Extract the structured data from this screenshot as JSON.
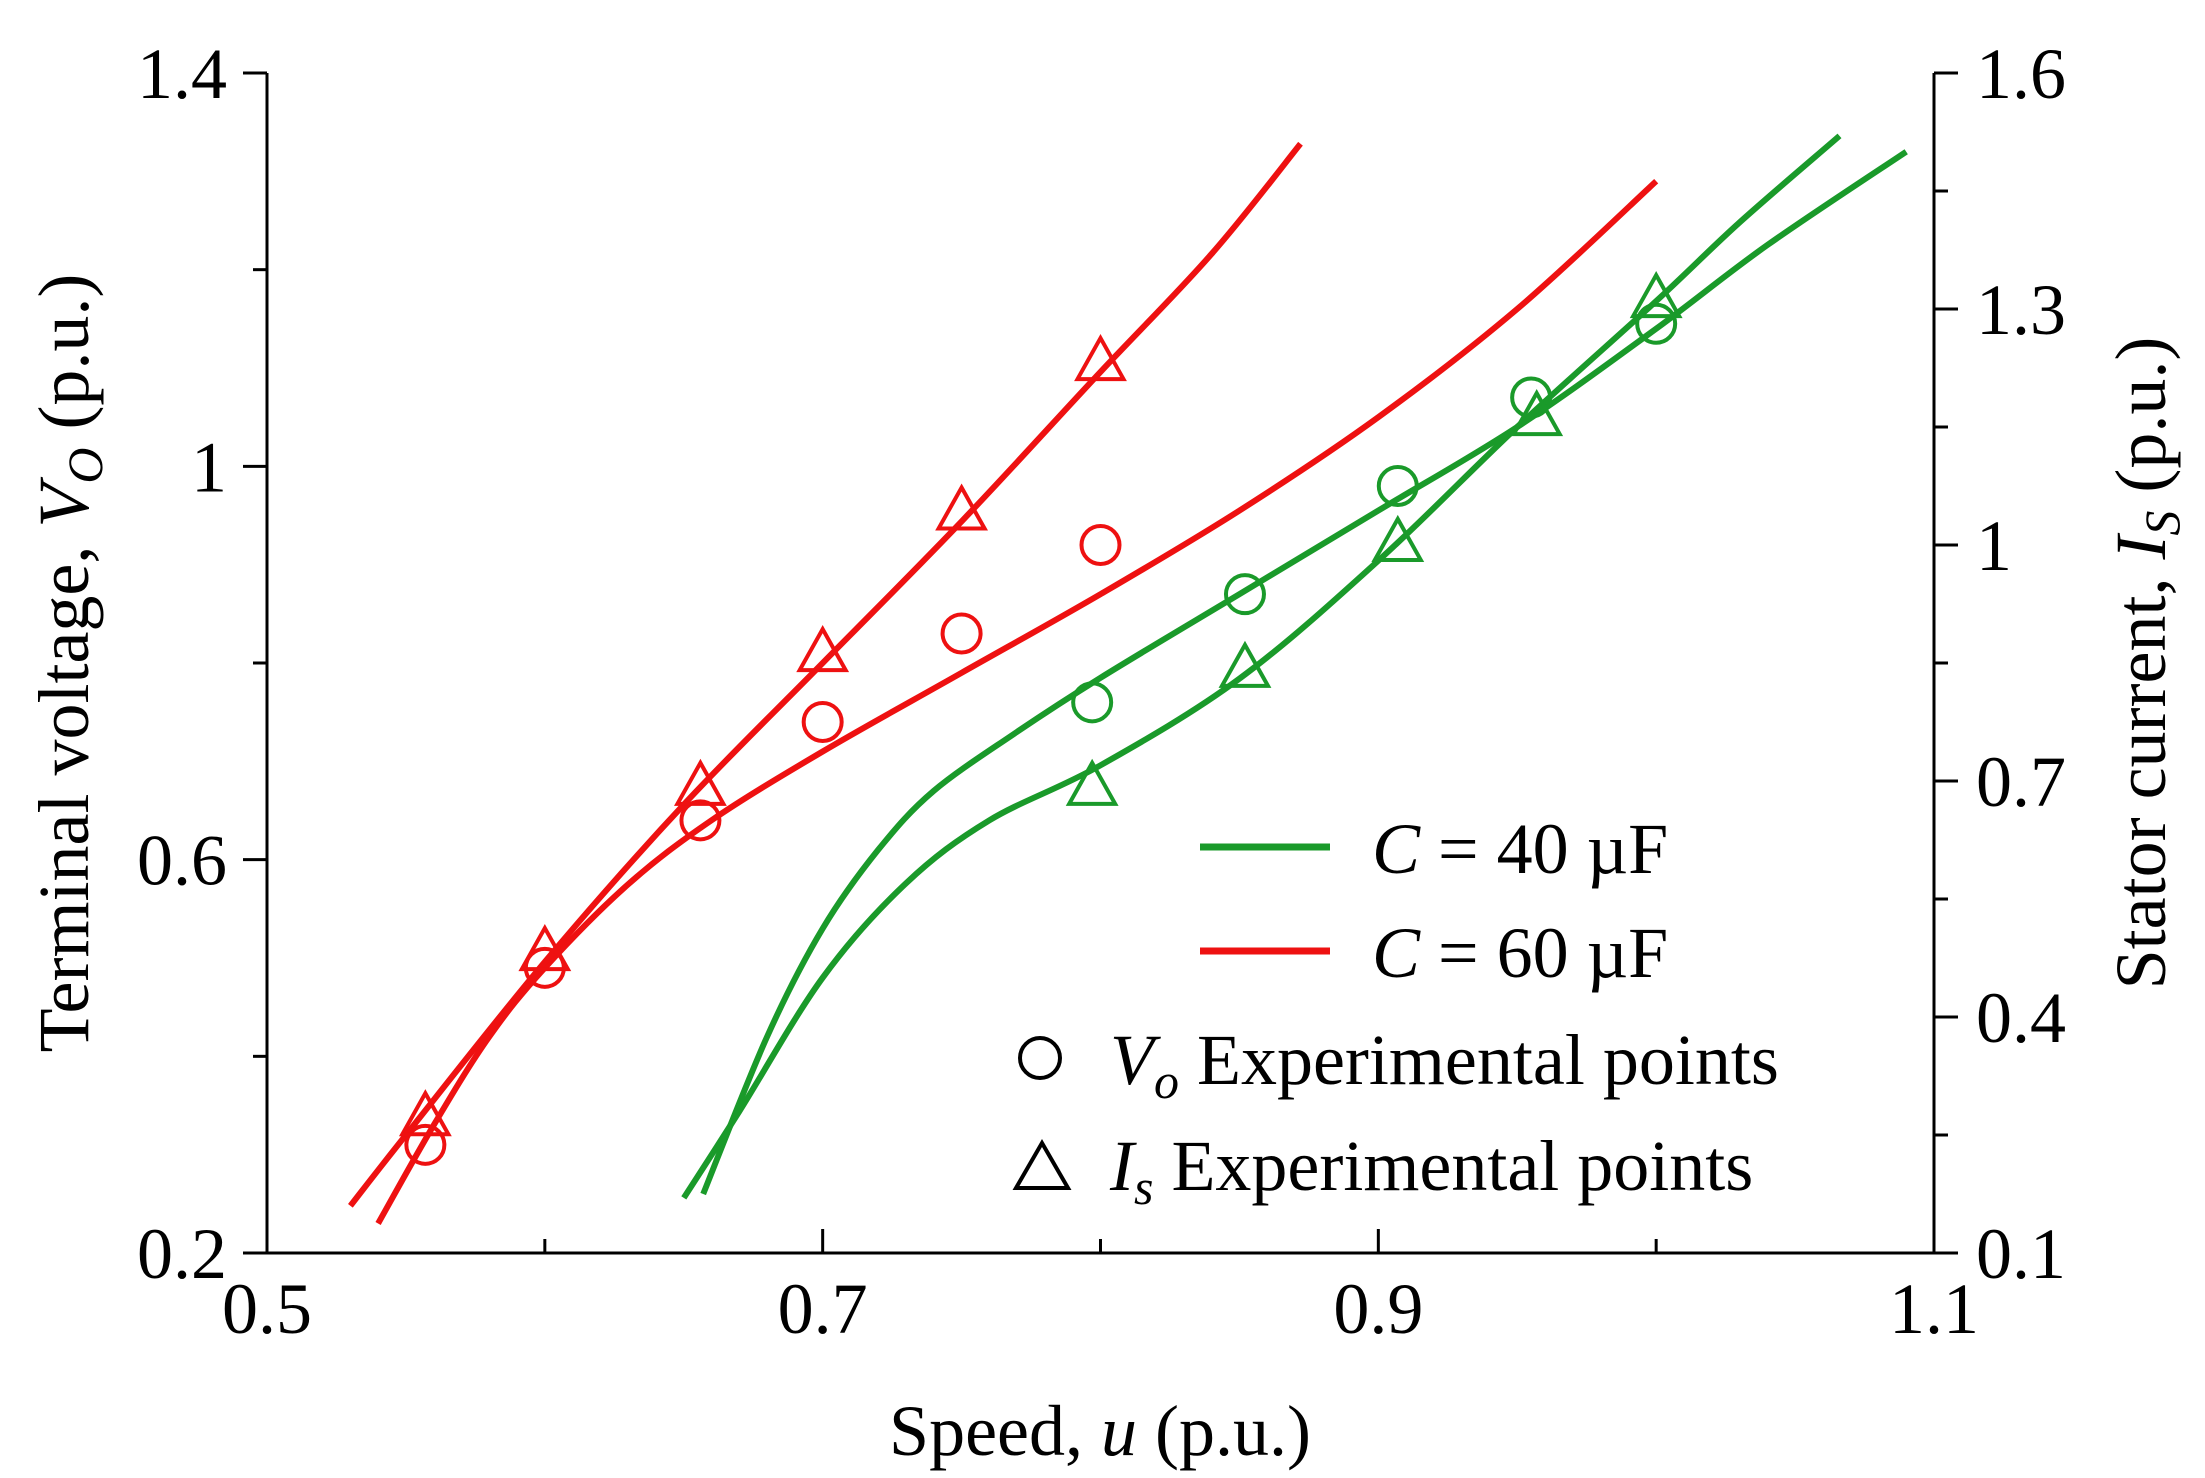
{
  "chart_data": {
    "type": "line",
    "title": "",
    "xlabel": {
      "prefix": "Speed, ",
      "var": "u",
      "suffix": " (p.u.)"
    },
    "ylabel_left": {
      "prefix": "Terminal voltage, ",
      "var": "V",
      "sub": "O",
      "suffix": " (p.u.)"
    },
    "ylabel_right": {
      "prefix": "Stator current, ",
      "var": "I",
      "sub": "S",
      "suffix": " (p.u.)"
    },
    "xlim": [
      0.5,
      1.1
    ],
    "ylim_left": [
      0.2,
      1.4
    ],
    "ylim_right": [
      0.1,
      1.6
    ],
    "x_ticks": [
      "0.5",
      "0.7",
      "0.9",
      "1.1"
    ],
    "y_left_ticks": [
      "0.2",
      "0.6",
      "1",
      "1.4"
    ],
    "y_right_ticks": [
      "0.1",
      "0.4",
      "0.7",
      "1",
      "1.3",
      "1.6"
    ],
    "colors": {
      "c40": "#1a9a2a",
      "c60": "#ee1111"
    },
    "series": [
      {
        "name": "Vo, C = 40 µF (fit)",
        "color": "c40",
        "axis": "left",
        "kind": "line",
        "points": [
          [
            0.657,
            0.26
          ],
          [
            0.68,
            0.42
          ],
          [
            0.7,
            0.53
          ],
          [
            0.72,
            0.61
          ],
          [
            0.74,
            0.67
          ],
          [
            0.77,
            0.73
          ],
          [
            0.8,
            0.785
          ],
          [
            0.85,
            0.87
          ],
          [
            0.9,
            0.955
          ],
          [
            0.95,
            1.04
          ],
          [
            1.0,
            1.14
          ],
          [
            1.04,
            1.225
          ],
          [
            1.09,
            1.32
          ]
        ]
      },
      {
        "name": "Is, C = 40 µF (fit)",
        "color": "c40",
        "axis": "right",
        "kind": "line",
        "points": [
          [
            0.65,
            0.17
          ],
          [
            0.67,
            0.28
          ],
          [
            0.7,
            0.45
          ],
          [
            0.73,
            0.57
          ],
          [
            0.76,
            0.65
          ],
          [
            0.8,
            0.72
          ],
          [
            0.85,
            0.83
          ],
          [
            0.9,
            0.98
          ],
          [
            0.95,
            1.15
          ],
          [
            1.0,
            1.31
          ],
          [
            1.03,
            1.41
          ],
          [
            1.066,
            1.52
          ]
        ]
      },
      {
        "name": "Vo, C = 60 µF (fit)",
        "color": "c60",
        "axis": "left",
        "kind": "line",
        "points": [
          [
            0.54,
            0.23
          ],
          [
            0.56,
            0.33
          ],
          [
            0.58,
            0.42
          ],
          [
            0.6,
            0.49
          ],
          [
            0.63,
            0.575
          ],
          [
            0.66,
            0.64
          ],
          [
            0.7,
            0.71
          ],
          [
            0.75,
            0.79
          ],
          [
            0.8,
            0.87
          ],
          [
            0.85,
            0.955
          ],
          [
            0.9,
            1.05
          ],
          [
            0.95,
            1.16
          ],
          [
            1.0,
            1.29
          ]
        ]
      },
      {
        "name": "Is, C = 60 µF (fit)",
        "color": "c60",
        "axis": "right",
        "kind": "line",
        "points": [
          [
            0.53,
            0.16
          ],
          [
            0.55,
            0.25
          ],
          [
            0.6,
            0.47
          ],
          [
            0.65,
            0.67
          ],
          [
            0.7,
            0.85
          ],
          [
            0.75,
            1.03
          ],
          [
            0.8,
            1.22
          ],
          [
            0.84,
            1.37
          ],
          [
            0.872,
            1.51
          ]
        ]
      },
      {
        "name": "Vo experimental, C = 40 µF",
        "color": "c40",
        "axis": "left",
        "kind": "circle",
        "points": [
          [
            0.797,
            0.76
          ],
          [
            0.852,
            0.87
          ],
          [
            0.907,
            0.98
          ],
          [
            0.955,
            1.07
          ],
          [
            1.0,
            1.145
          ]
        ]
      },
      {
        "name": "Is experimental, C = 40 µF",
        "color": "c40",
        "axis": "right",
        "kind": "triangle",
        "points": [
          [
            0.797,
            0.69
          ],
          [
            0.852,
            0.84
          ],
          [
            0.907,
            1.0
          ],
          [
            0.957,
            1.16
          ],
          [
            1.0,
            1.31
          ]
        ]
      },
      {
        "name": "Vo experimental, C = 60 µF",
        "color": "c60",
        "axis": "left",
        "kind": "circle",
        "points": [
          [
            0.557,
            0.31
          ],
          [
            0.6,
            0.49
          ],
          [
            0.656,
            0.64
          ],
          [
            0.7,
            0.74
          ],
          [
            0.75,
            0.83
          ],
          [
            0.8,
            0.92
          ]
        ]
      },
      {
        "name": "Is experimental, C = 60 µF",
        "color": "c60",
        "axis": "right",
        "kind": "triangle",
        "points": [
          [
            0.557,
            0.27
          ],
          [
            0.6,
            0.48
          ],
          [
            0.656,
            0.69
          ],
          [
            0.7,
            0.86
          ],
          [
            0.75,
            1.04
          ],
          [
            0.8,
            1.23
          ]
        ]
      }
    ],
    "legend": {
      "position": "lower-right",
      "entries": [
        {
          "kind": "line",
          "color": "c40",
          "var": "C",
          "text": " = 40 µF"
        },
        {
          "kind": "line",
          "color": "c60",
          "var": "C",
          "text": " = 60 µF"
        },
        {
          "kind": "circle",
          "color": "#000000",
          "var": "V",
          "sub": "o",
          "text": " Experimental points"
        },
        {
          "kind": "triangle",
          "color": "#000000",
          "var": "I",
          "sub": "s",
          "text": " Experimental points"
        }
      ]
    }
  }
}
